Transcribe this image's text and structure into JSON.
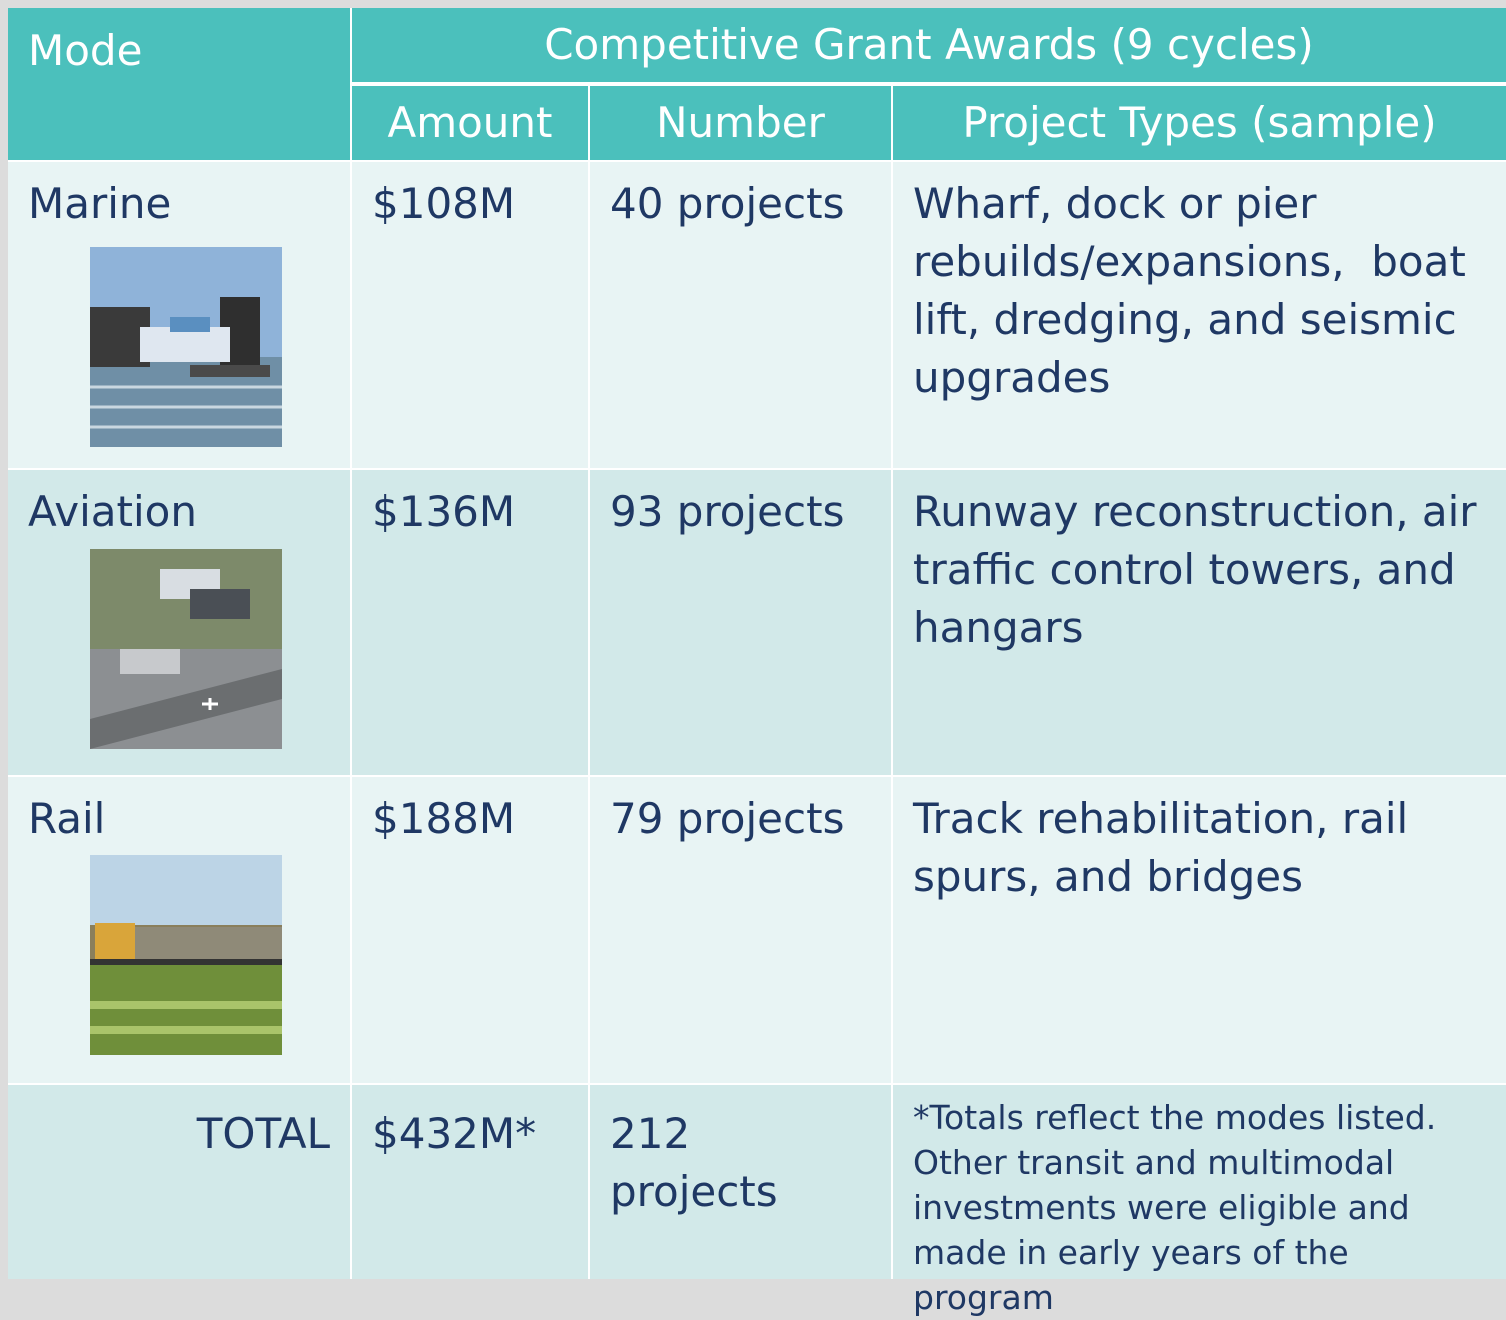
{
  "table": {
    "header": {
      "mode": "Mode",
      "group": "Competitive Grant Awards (9 cycles)",
      "columns": [
        "Amount",
        "Number",
        "Project Types (sample)"
      ]
    },
    "rows": [
      [
        "Marine",
        "$108M",
        "40 projects",
        "Wharf, dock or pier rebuilds/expansions,  boat lift, dredging, and seismic upgrades"
      ],
      [
        "Aviation",
        "$136M",
        "93 projects",
        "Runway reconstruction, air traffic control towers, and hangars"
      ],
      [
        "Rail",
        "$188M",
        "79 projects",
        "Track rehabilitation, rail spurs, and bridges"
      ]
    ],
    "total": [
      "TOTAL",
      "$432M*",
      "212 projects",
      "*Totals reflect the modes listed. Other transit and multimodal investments were eligible and made in early years of the program"
    ]
  }
}
